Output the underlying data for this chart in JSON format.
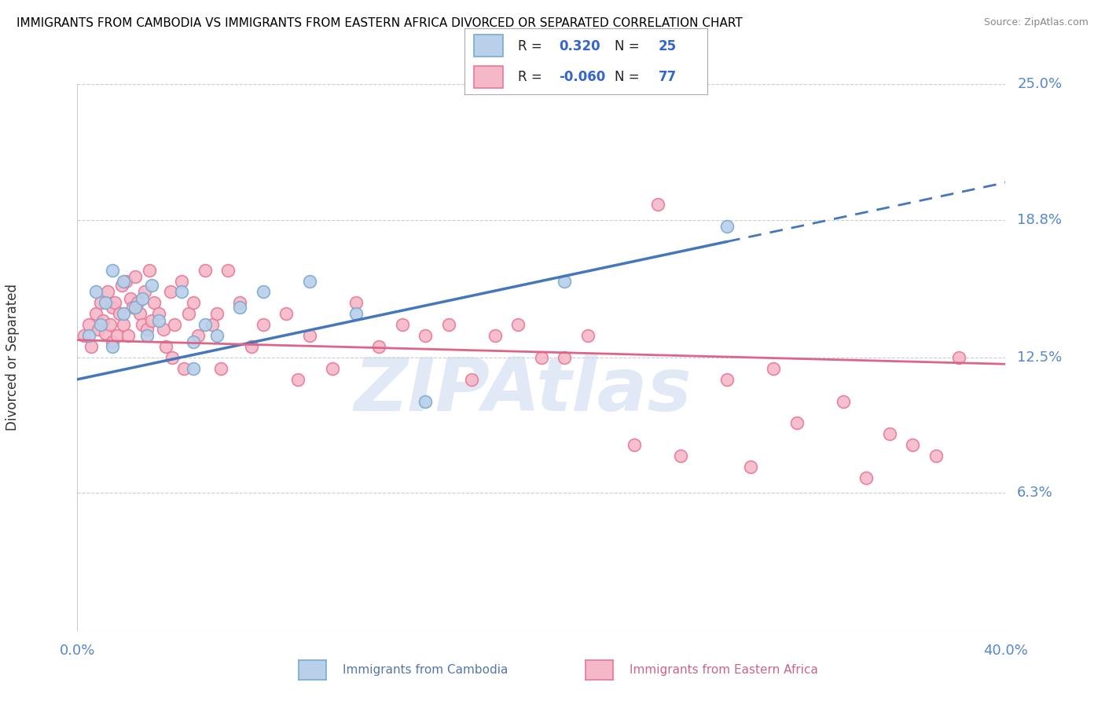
{
  "title": "IMMIGRANTS FROM CAMBODIA VS IMMIGRANTS FROM EASTERN AFRICA DIVORCED OR SEPARATED CORRELATION CHART",
  "source": "Source: ZipAtlas.com",
  "ylabel": "Divorced or Separated",
  "xmin": 0.0,
  "xmax": 40.0,
  "ymin": 0.0,
  "ymax": 25.0,
  "yticks": [
    6.3,
    12.5,
    18.8,
    25.0
  ],
  "ytick_labels": [
    "6.3%",
    "12.5%",
    "18.8%",
    "25.0%"
  ],
  "color_cambodia_fill": "#b8d0ea",
  "color_cambodia_edge": "#7aaacf",
  "color_eastern_africa_fill": "#f5b8c8",
  "color_eastern_africa_edge": "#e87898",
  "color_line_cambodia": "#4477bb",
  "color_line_eastern_africa": "#dd6688",
  "watermark": "ZIPAtlas",
  "legend_r1": "R =",
  "legend_v1": "0.320",
  "legend_n1_label": "N =",
  "legend_n1": "25",
  "legend_r2": "R =",
  "legend_v2": "-0.060",
  "legend_n2_label": "N =",
  "legend_n2": "77",
  "cambodia_x": [
    0.5,
    0.8,
    1.0,
    1.2,
    1.5,
    1.5,
    2.0,
    2.0,
    2.5,
    2.8,
    3.0,
    3.2,
    3.5,
    4.5,
    5.0,
    5.5,
    6.0,
    7.0,
    8.0,
    10.0,
    12.0,
    15.0,
    5.0,
    28.0,
    21.0
  ],
  "cambodia_y": [
    13.5,
    15.5,
    14.0,
    15.0,
    13.0,
    16.5,
    14.5,
    16.0,
    14.8,
    15.2,
    13.5,
    15.8,
    14.2,
    15.5,
    13.2,
    14.0,
    13.5,
    14.8,
    15.5,
    16.0,
    14.5,
    10.5,
    12.0,
    18.5,
    16.0
  ],
  "eastern_africa_x": [
    0.3,
    0.5,
    0.6,
    0.8,
    0.9,
    1.0,
    1.1,
    1.2,
    1.3,
    1.4,
    1.5,
    1.5,
    1.6,
    1.7,
    1.8,
    1.9,
    2.0,
    2.1,
    2.2,
    2.3,
    2.4,
    2.5,
    2.6,
    2.7,
    2.8,
    2.9,
    3.0,
    3.1,
    3.2,
    3.3,
    3.5,
    3.7,
    4.0,
    4.2,
    4.5,
    4.8,
    5.0,
    5.5,
    5.8,
    6.0,
    6.5,
    7.0,
    8.0,
    9.0,
    10.0,
    12.0,
    13.0,
    14.0,
    15.0,
    16.0,
    18.0,
    19.0,
    20.0,
    22.0,
    25.0,
    28.0,
    30.0,
    33.0,
    35.0,
    37.0,
    7.5,
    9.5,
    11.0,
    17.0,
    21.0,
    24.0,
    26.0,
    29.0,
    31.0,
    34.0,
    36.0,
    38.0,
    3.8,
    4.1,
    4.6,
    5.2,
    6.2
  ],
  "eastern_africa_y": [
    13.5,
    14.0,
    13.0,
    14.5,
    13.8,
    15.0,
    14.2,
    13.6,
    15.5,
    14.0,
    13.2,
    14.8,
    15.0,
    13.5,
    14.5,
    15.8,
    14.0,
    16.0,
    13.5,
    15.2,
    14.8,
    16.2,
    15.0,
    14.5,
    14.0,
    15.5,
    13.8,
    16.5,
    14.2,
    15.0,
    14.5,
    13.8,
    15.5,
    14.0,
    16.0,
    14.5,
    15.0,
    16.5,
    14.0,
    14.5,
    16.5,
    15.0,
    14.0,
    14.5,
    13.5,
    15.0,
    13.0,
    14.0,
    13.5,
    14.0,
    13.5,
    14.0,
    12.5,
    13.5,
    19.5,
    11.5,
    12.0,
    10.5,
    9.0,
    8.0,
    13.0,
    11.5,
    12.0,
    11.5,
    12.5,
    8.5,
    8.0,
    7.5,
    9.5,
    7.0,
    8.5,
    12.5,
    13.0,
    12.5,
    12.0,
    13.5,
    12.0
  ],
  "cam_line_x0": 0.0,
  "cam_line_y0": 11.5,
  "cam_line_x1": 40.0,
  "cam_line_y1": 20.5,
  "cam_solid_end_x": 28.0,
  "ea_line_x0": 0.0,
  "ea_line_y0": 13.3,
  "ea_line_x1": 40.0,
  "ea_line_y1": 12.2
}
